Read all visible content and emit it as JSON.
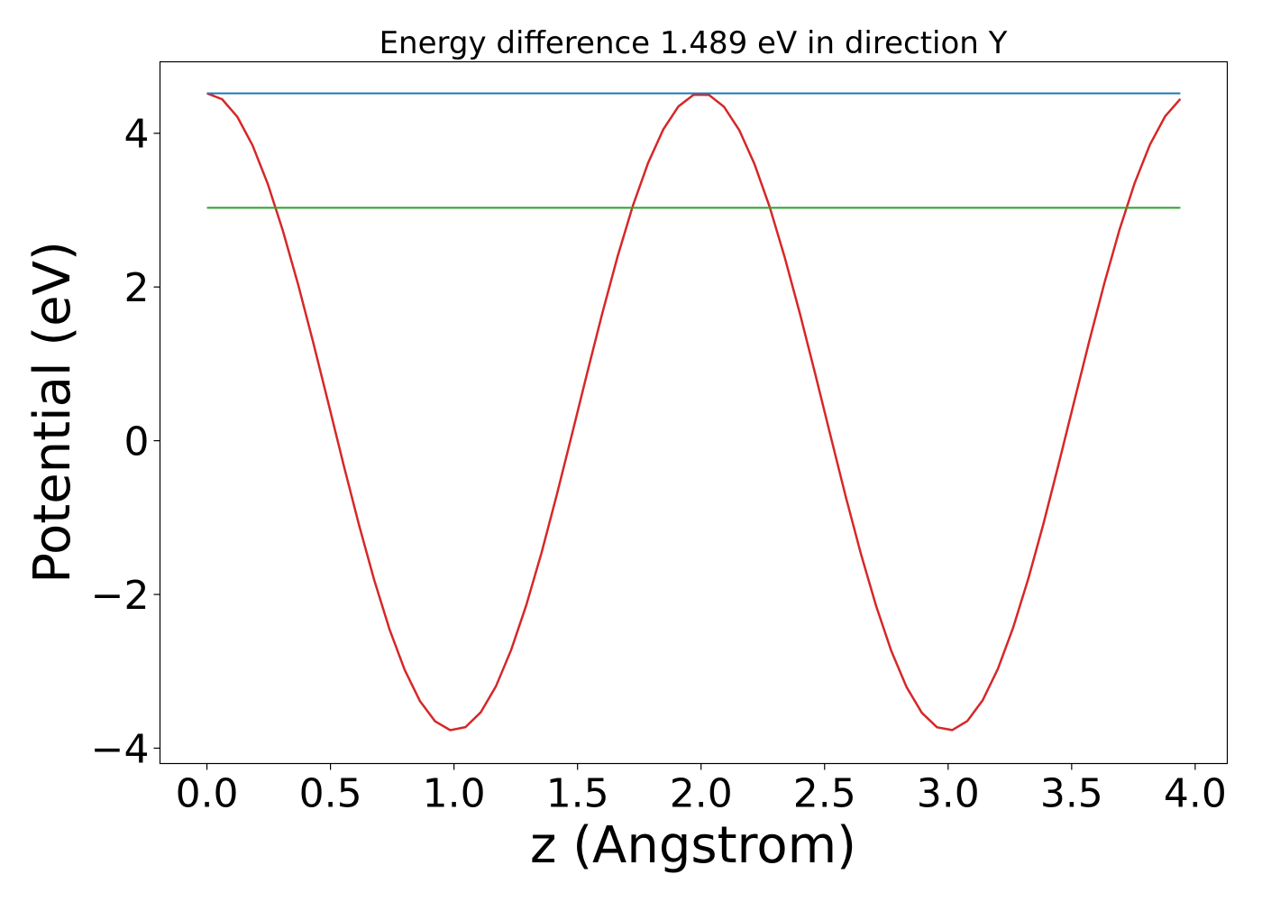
{
  "chart_data": {
    "type": "line",
    "title": "Energy difference 1.489 eV in direction Y",
    "xlabel": "z (Angstrom)",
    "ylabel": "Potential (eV)",
    "xlim": [
      -0.19,
      4.13
    ],
    "ylim": [
      -4.2,
      4.93
    ],
    "x_ticks": [
      0.0,
      0.5,
      1.0,
      1.5,
      2.0,
      2.5,
      3.0,
      3.5,
      4.0
    ],
    "x_tick_labels": [
      "0.0",
      "0.5",
      "1.0",
      "1.5",
      "2.0",
      "2.5",
      "3.0",
      "3.5",
      "4.0"
    ],
    "y_ticks": [
      -4,
      -2,
      0,
      2,
      4
    ],
    "y_tick_labels": [
      "−4",
      "−2",
      "0",
      "2",
      "4"
    ],
    "grid": false,
    "series": [
      {
        "color": "#d62728",
        "kind": "curve",
        "x_start": 0.0,
        "x_end": 3.94,
        "y_min": -3.77,
        "y_max": 4.52,
        "peak_x": 2.0
      },
      {
        "color": "#1f77b4",
        "kind": "hline",
        "x_start": 0.0,
        "x_end": 3.94,
        "y": 4.52
      },
      {
        "color": "#2ca02c",
        "kind": "hline",
        "x_start": 0.0,
        "x_end": 3.94,
        "y": 3.03
      }
    ]
  }
}
